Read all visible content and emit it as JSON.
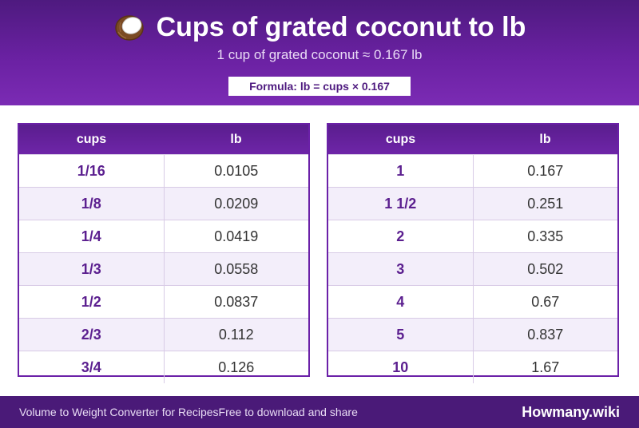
{
  "header": {
    "title": "Cups of grated coconut to lb",
    "subtitle": "1 cup of grated coconut ≈ 0.167 lb",
    "formula": "Formula: lb = cups × 0.167",
    "icon": "coconut-icon"
  },
  "tables": [
    {
      "headers": [
        "cups",
        "lb"
      ],
      "rows": [
        [
          "1/16",
          "0.0105"
        ],
        [
          "1/8",
          "0.0209"
        ],
        [
          "1/4",
          "0.0419"
        ],
        [
          "1/3",
          "0.0558"
        ],
        [
          "1/2",
          "0.0837"
        ],
        [
          "2/3",
          "0.112"
        ],
        [
          "3/4",
          "0.126"
        ]
      ]
    },
    {
      "headers": [
        "cups",
        "lb"
      ],
      "rows": [
        [
          "1",
          "0.167"
        ],
        [
          "1 1/2",
          "0.251"
        ],
        [
          "2",
          "0.335"
        ],
        [
          "3",
          "0.502"
        ],
        [
          "4",
          "0.67"
        ],
        [
          "5",
          "0.837"
        ],
        [
          "10",
          "1.67"
        ]
      ]
    }
  ],
  "footer": {
    "left_text": "Volume to Weight Converter for Recipes",
    "left_subtext": "Free to download and share",
    "brand": "Howmany.wiki"
  },
  "colors": {
    "header_purple": "#6a21a2",
    "accent_purple": "#5b1f8f",
    "footer_purple": "#4a1a78",
    "row_alt": "#f3eefa"
  }
}
